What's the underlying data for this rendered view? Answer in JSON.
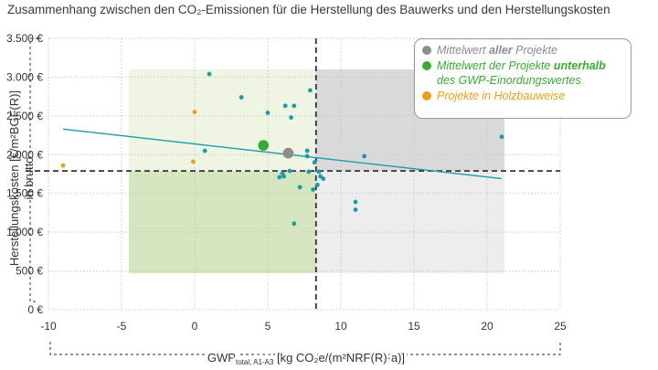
{
  "title": "Zusammenhang zwischen den CO₂-Emissionen für die Herstellung des Bauwerks und den Herstellungskosten",
  "colors": {
    "teal": "#1b9aaa",
    "gray": "#8c8c8c",
    "green": "#3aaa35",
    "orange": "#e89f1a",
    "trend": "#1b9aaa",
    "zone_green": "#d5e6bf",
    "zone_lightgreen": "#eef5e3",
    "zone_darkgray": "#d9d9d9",
    "zone_lightgray": "#ededed"
  },
  "legend": {
    "items": [
      {
        "pre": "Mittelwert ",
        "bold": "aller",
        "post": " Projekte",
        "color": "#8c8c8c"
      },
      {
        "pre": "Mittelwert der Projekte ",
        "bold": "unterhalb",
        "post": " des GWP-Einordungswertes",
        "color": "#3aaa35"
      },
      {
        "pre": "Projekte in Holzbauweise",
        "bold": "",
        "post": "",
        "color": "#e89f1a"
      }
    ]
  },
  "chart_data": {
    "type": "scatter",
    "title": "Zusammenhang zwischen den CO₂-Emissionen für die Herstellung des Bauwerks und den Herstellungskosten",
    "ylabel": "Herstellungskosten [€/m²BGF(R)]",
    "ylabel2": "in brutto",
    "xlabel_main": "GWP",
    "xlabel_sub": "total, A1-A3",
    "xlabel_rest": " [kg CO₂e/(m²NRF(R)·a)]",
    "xlim": [
      -10,
      25
    ],
    "ylim": [
      0,
      3500
    ],
    "x_ticks": [
      -10,
      -5,
      0,
      5,
      10,
      15,
      20,
      25
    ],
    "x_tick_labels": [
      "-10",
      "-5",
      "0",
      "5",
      "10",
      "15",
      "20",
      "25"
    ],
    "y_ticks": [
      0,
      500,
      1000,
      1500,
      2000,
      2500,
      3000,
      3500
    ],
    "y_tick_labels": [
      "0 €",
      "500 €",
      "1.000 €",
      "1.500 €",
      "2.000 €",
      "2.500 €",
      "3.000 €",
      "3.500 €"
    ],
    "grid": true,
    "legend_position": "top-right",
    "reference_lines": {
      "x": 8.3,
      "y": 1790
    },
    "zones": [
      {
        "name": "green",
        "x": [
          -4.5,
          8.3
        ],
        "y": [
          470,
          1790
        ]
      },
      {
        "name": "lightgreen",
        "x": [
          -4.5,
          8.3
        ],
        "y": [
          1790,
          3100
        ]
      },
      {
        "name": "darkgray",
        "x": [
          8.3,
          21.2
        ],
        "y": [
          1790,
          3100
        ]
      },
      {
        "name": "lightgray",
        "x": [
          8.3,
          21.2
        ],
        "y": [
          470,
          1790
        ]
      }
    ],
    "trendline": {
      "x": [
        -9,
        21
      ],
      "y": [
        2330,
        1690
      ]
    },
    "series": [
      {
        "name": "Projekte",
        "points": [
          {
            "x": 1.0,
            "y": 3040
          },
          {
            "x": 3.2,
            "y": 2740
          },
          {
            "x": 5.0,
            "y": 2540
          },
          {
            "x": 6.2,
            "y": 2630
          },
          {
            "x": 6.6,
            "y": 2480
          },
          {
            "x": 6.8,
            "y": 2630
          },
          {
            "x": 7.9,
            "y": 2830
          },
          {
            "x": 0.7,
            "y": 2050
          },
          {
            "x": 5.8,
            "y": 1710
          },
          {
            "x": 6.0,
            "y": 1760
          },
          {
            "x": 6.1,
            "y": 1720
          },
          {
            "x": 6.5,
            "y": 1790
          },
          {
            "x": 7.2,
            "y": 1580
          },
          {
            "x": 7.7,
            "y": 2050
          },
          {
            "x": 7.7,
            "y": 1980
          },
          {
            "x": 7.8,
            "y": 1780
          },
          {
            "x": 8.1,
            "y": 1550
          },
          {
            "x": 8.2,
            "y": 1900
          },
          {
            "x": 8.4,
            "y": 1610
          },
          {
            "x": 8.5,
            "y": 1780
          },
          {
            "x": 8.6,
            "y": 1720
          },
          {
            "x": 8.8,
            "y": 1690
          },
          {
            "x": 11.0,
            "y": 1390
          },
          {
            "x": 11.0,
            "y": 1290
          },
          {
            "x": 11.6,
            "y": 1980
          },
          {
            "x": 21.0,
            "y": 2230
          },
          {
            "x": 6.8,
            "y": 1110
          }
        ]
      },
      {
        "name": "Projekte in Holzbauweise",
        "points": [
          {
            "x": -9.0,
            "y": 1860
          },
          {
            "x": 0.0,
            "y": 2550
          },
          {
            "x": -0.1,
            "y": 1910
          }
        ]
      },
      {
        "name": "Mittelwert aller Projekte",
        "points": [
          {
            "x": 6.4,
            "y": 2020
          }
        ]
      },
      {
        "name": "Mittelwert der Projekte unterhalb des GWP-Einordungswertes",
        "points": [
          {
            "x": 4.7,
            "y": 2120
          }
        ]
      }
    ]
  }
}
